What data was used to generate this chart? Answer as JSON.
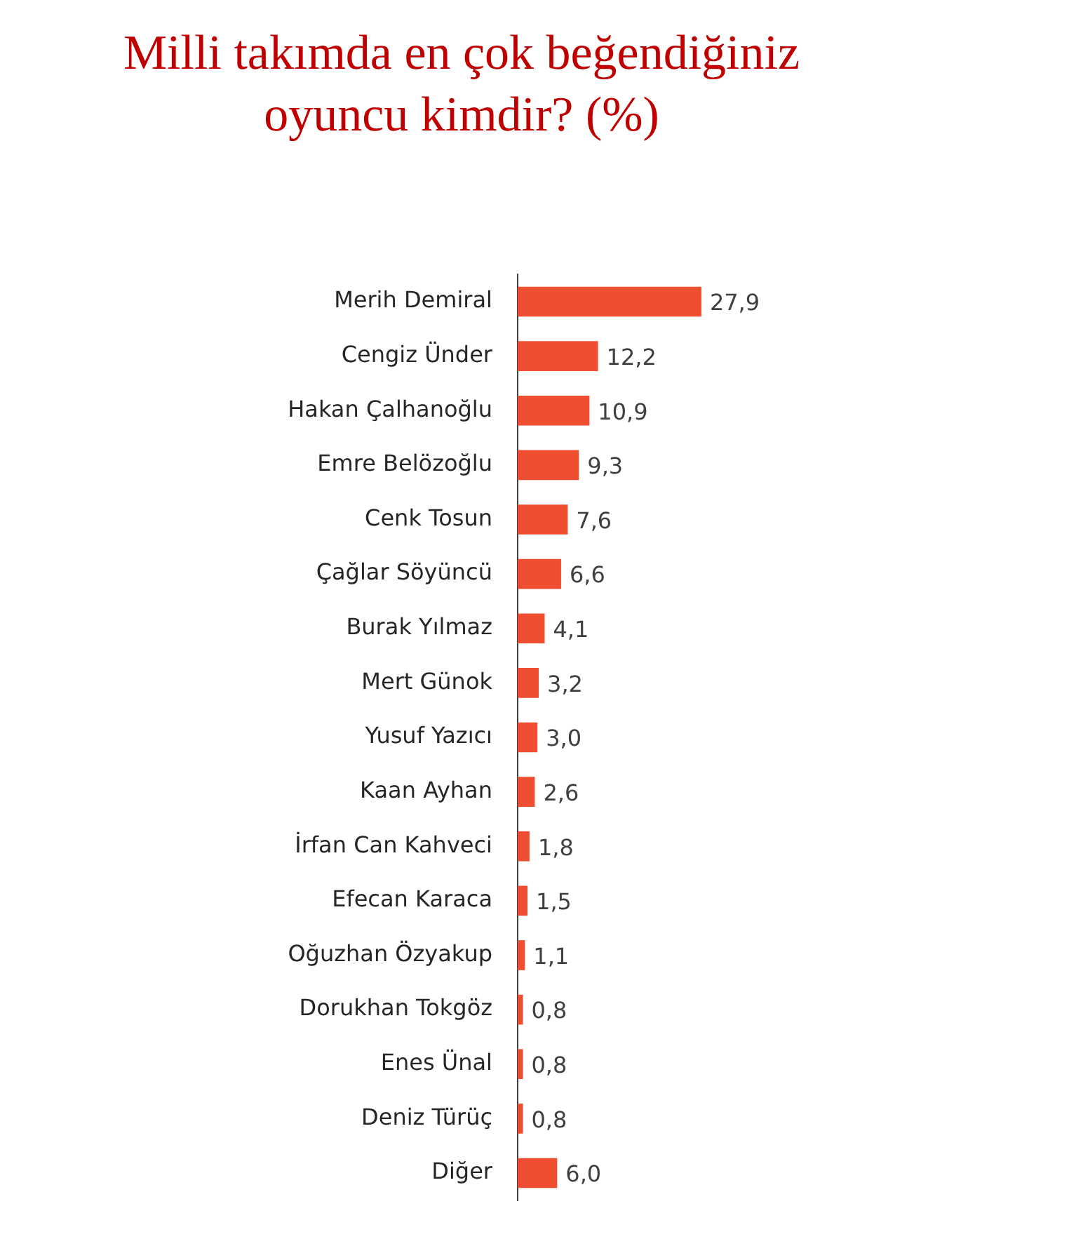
{
  "chart_data": {
    "type": "bar",
    "orientation": "horizontal",
    "tick_labels": "y",
    "title": "Milli takımda en çok beğendiğiniz oyuncu kimdir? (%)",
    "categories": [
      "Merih Demiral",
      "Cengiz Ünder",
      "Hakan Çalhanoğlu",
      "Emre Belözoğlu",
      "Cenk Tosun",
      "Çağlar Söyüncü",
      "Burak Yılmaz",
      "Mert Günok",
      "Yusuf Yazıcı",
      "Kaan Ayhan",
      "İrfan Can Kahveci",
      "Efecan Karaca",
      "Oğuzhan Özyakup",
      "Dorukhan Tokgöz",
      "Enes Ünal",
      "Deniz Türüç",
      "Diğer"
    ],
    "values": [
      27.9,
      12.2,
      10.9,
      9.3,
      7.6,
      6.6,
      4.1,
      3.2,
      3.0,
      2.6,
      1.8,
      1.5,
      1.1,
      0.8,
      0.8,
      0.8,
      6.0
    ],
    "value_labels": [
      "27,9",
      "12,2",
      "10,9",
      "9,3",
      "7,6",
      "6,6",
      "4,1",
      "3,2",
      "3,0",
      "2,6",
      "1,8",
      "1,5",
      "1,1",
      "0,8",
      "0,8",
      "0,8",
      "6,0"
    ],
    "color": "#f04e30"
  }
}
